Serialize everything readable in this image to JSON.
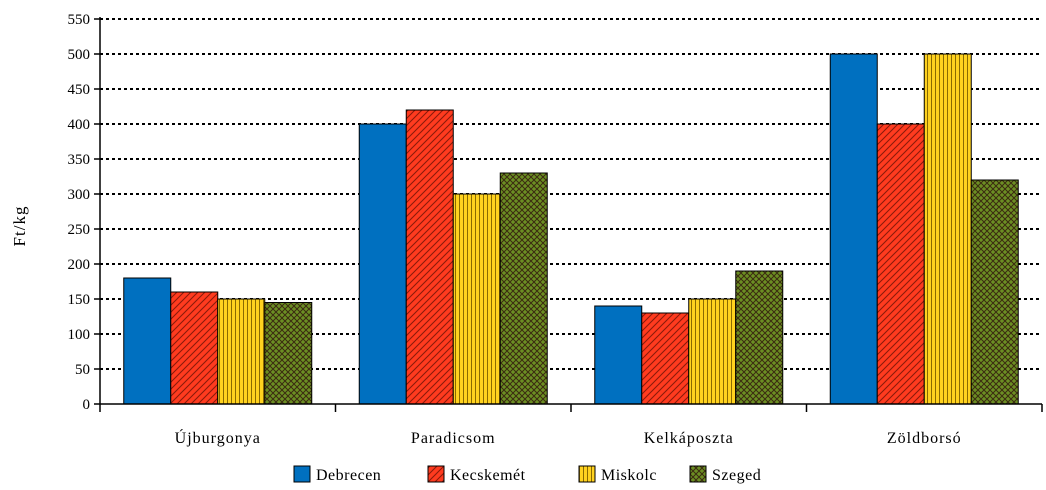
{
  "chart_data": {
    "type": "bar",
    "title": "",
    "xlabel": "",
    "ylabel": "Ft/kg",
    "ylim": [
      0,
      550
    ],
    "yticks": [
      0,
      50,
      100,
      150,
      200,
      250,
      300,
      350,
      400,
      450,
      500,
      550
    ],
    "categories": [
      "Újburgonya",
      "Paradicsom",
      "Kelkáposzta",
      "Zöldborsó"
    ],
    "series": [
      {
        "name": "Debrecen",
        "values": [
          180,
          400,
          140,
          500
        ],
        "color": "#0070C0",
        "pattern": "solid"
      },
      {
        "name": "Kecskemét",
        "values": [
          160,
          420,
          130,
          400
        ],
        "color": "#FF3B1F",
        "pattern": "diagonal-hatch"
      },
      {
        "name": "Miskolc",
        "values": [
          150,
          300,
          150,
          500
        ],
        "color": "#FFD21F",
        "pattern": "vertical-lines"
      },
      {
        "name": "Szeged",
        "values": [
          145,
          330,
          190,
          320
        ],
        "color": "#6B8E23",
        "pattern": "crosshatch"
      }
    ],
    "grid": true,
    "legend_position": "bottom"
  }
}
